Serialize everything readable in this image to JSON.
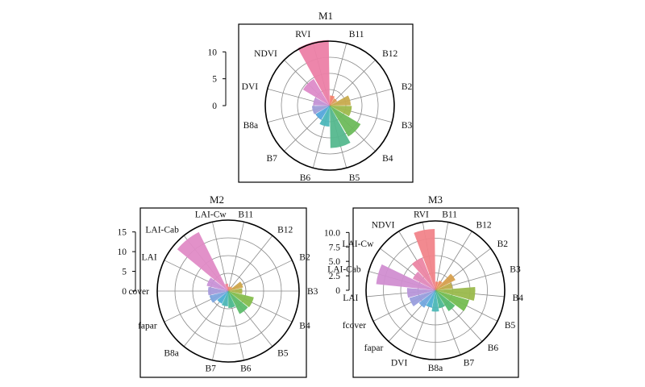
{
  "chart_data": [
    {
      "type": "polar-bar",
      "title": "M1",
      "rlim": [
        0,
        12
      ],
      "rticks": [
        "10",
        "5",
        "0"
      ],
      "rtick_values": [
        10,
        5,
        0
      ],
      "categories": [
        "B11",
        "B12",
        "B2",
        "B3",
        "B4",
        "B5",
        "B6",
        "B7",
        "B8a",
        "DVI",
        "NDVI",
        "RVI"
      ],
      "values": [
        1.9,
        1.6,
        3.9,
        4.1,
        6.7,
        7.9,
        3.9,
        3.1,
        3.3,
        3.1,
        5.8,
        12.2
      ],
      "colors": [
        "#f3836f",
        "#e09a5d",
        "#c8ab4e",
        "#9fb94c",
        "#6dbb5b",
        "#55b88e",
        "#4db7bb",
        "#55a8dc",
        "#9f9fd9",
        "#c493d6",
        "#dd8bc9",
        "#ec80a6"
      ]
    },
    {
      "type": "polar-bar",
      "title": "M2",
      "rlim": [
        0,
        18
      ],
      "rticks": [
        "15",
        "10",
        "5",
        "0"
      ],
      "rtick_values": [
        15,
        10,
        5,
        0
      ],
      "categories": [
        "B11",
        "B12",
        "B2",
        "B3",
        "B4",
        "B5",
        "B6",
        "B7",
        "B8a",
        "fapar",
        "cover",
        "LAI",
        "LAI-Cab",
        "LAI-Cw"
      ],
      "values": [
        1.1,
        1.3,
        3.9,
        3.6,
        6.7,
        6.5,
        4.3,
        3.9,
        3.6,
        4.9,
        5.1,
        5.6,
        16.7,
        1.9
      ],
      "colors": [
        "#f3836f",
        "#e6935d",
        "#cfa64c",
        "#abb54c",
        "#86be4e",
        "#5dbc6b",
        "#4db98f",
        "#4db7b7",
        "#4fb0d6",
        "#7ea7df",
        "#a69bdb",
        "#c992d7",
        "#e08bc6",
        "#ef8493"
      ]
    },
    {
      "type": "polar-bar",
      "title": "M3",
      "rlim": [
        0,
        12
      ],
      "rticks": [
        "10.0",
        "7.5",
        "5.0",
        "2.5",
        "0"
      ],
      "rtick_values": [
        10,
        7.5,
        5,
        2.5,
        0
      ],
      "categories": [
        "B11",
        "B12",
        "B2",
        "B3",
        "B4",
        "B5",
        "B6",
        "B7",
        "B8a",
        "DVI",
        "fapar",
        "fcover",
        "LAI",
        "LAI-Cab",
        "LAI-Cw",
        "NDVI",
        "RVI"
      ],
      "values": [
        1.5,
        1.8,
        3.9,
        3.0,
        6.9,
        6.1,
        4.3,
        3.2,
        3.7,
        3.1,
        3.6,
        4.7,
        4.9,
        10.3,
        4.4,
        6.1,
        10.6
      ],
      "colors": [
        "#f3836f",
        "#e8915e",
        "#d7a04e",
        "#bead4b",
        "#9ab94c",
        "#74bd51",
        "#55bb70",
        "#4db995",
        "#4db8b7",
        "#50b1d5",
        "#72a8df",
        "#999edd",
        "#b796d9",
        "#d18ed1",
        "#e28abc",
        "#ec86a4",
        "#f1848a"
      ]
    }
  ]
}
